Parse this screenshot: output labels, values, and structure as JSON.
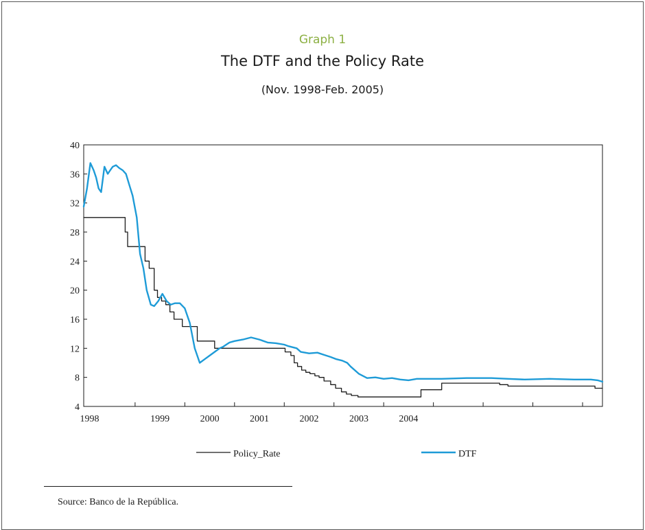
{
  "header": {
    "graph_number": "Graph 1",
    "title": "The DTF and the Policy Rate",
    "subtitle": "(Nov. 1998-Feb. 2005)"
  },
  "footer": {
    "source": "Source: Banco de la República."
  },
  "colors": {
    "policy_rate": "#1a1a1a",
    "dtf": "#1e9bd7",
    "graph_number": "#8cb043"
  },
  "chart_data": {
    "type": "line",
    "title": "The DTF and the Policy Rate",
    "subtitle": "(Nov. 1998-Feb. 2005)",
    "xlabel": "",
    "ylabel": "",
    "xlim": [
      1998.88,
      2005.14
    ],
    "ylim": [
      4,
      40
    ],
    "y_ticks": [
      4,
      8,
      12,
      16,
      20,
      24,
      28,
      32,
      36,
      40
    ],
    "x_tick_labels": [
      "1998",
      "1999",
      "2000",
      "2001",
      "2002",
      "2003",
      "2004"
    ],
    "x_tick_positions": [
      1998.88,
      1999.5,
      2000.1,
      2000.7,
      2001.3,
      2001.9,
      2002.5,
      2003.1,
      2003.7,
      2004.3,
      2004.9
    ],
    "x_label_positions": [
      1998.95,
      1999.8,
      2000.4,
      2001.0,
      2001.6,
      2002.2,
      2002.8
    ],
    "grid": false,
    "legend": "bottom",
    "series": [
      {
        "name": "Policy_Rate",
        "style": "step",
        "color": "#1a1a1a",
        "x": [
          1998.88,
          1999.38,
          1999.41,
          1999.46,
          1999.62,
          1999.67,
          1999.73,
          1999.77,
          1999.82,
          1999.87,
          1999.92,
          1999.97,
          2000.07,
          2000.25,
          2000.46,
          2000.51,
          2000.56,
          2001.31,
          2001.38,
          2001.42,
          2001.46,
          2001.51,
          2001.56,
          2001.61,
          2001.67,
          2001.72,
          2001.78,
          2001.86,
          2001.92,
          2001.99,
          2002.05,
          2002.11,
          2002.19,
          2002.23,
          2002.31,
          2002.95,
          2003.2,
          2003.45,
          2003.9,
          2004.0,
          2005.05,
          2005.14
        ],
        "values": [
          30,
          28,
          26,
          26,
          24,
          23,
          20,
          19,
          18.5,
          18,
          17,
          16,
          15,
          13,
          12,
          12,
          12,
          11.5,
          11,
          10,
          9.5,
          9,
          8.7,
          8.5,
          8.2,
          8,
          7.5,
          7,
          6.5,
          6,
          5.7,
          5.5,
          5.3,
          5.3,
          5.3,
          6.3,
          7.2,
          7.2,
          7.0,
          6.8,
          6.5,
          6.5
        ]
      },
      {
        "name": "DTF",
        "style": "line",
        "color": "#1e9bd7",
        "x": [
          1998.88,
          1998.92,
          1998.96,
          1999.0,
          1999.03,
          1999.06,
          1999.09,
          1999.13,
          1999.17,
          1999.2,
          1999.23,
          1999.27,
          1999.31,
          1999.35,
          1999.39,
          1999.43,
          1999.47,
          1999.52,
          1999.56,
          1999.6,
          1999.64,
          1999.69,
          1999.73,
          1999.78,
          1999.83,
          1999.88,
          1999.93,
          1999.98,
          2000.04,
          2000.1,
          2000.16,
          2000.22,
          2000.28,
          2000.34,
          2000.4,
          2000.46,
          2000.52,
          2000.56,
          2000.6,
          2000.64,
          2000.7,
          2000.8,
          2000.9,
          2001.0,
          2001.1,
          2001.2,
          2001.3,
          2001.35,
          2001.45,
          2001.5,
          2001.6,
          2001.7,
          2001.78,
          2001.86,
          2001.93,
          2002.0,
          2002.06,
          2002.1,
          2002.2,
          2002.3,
          2002.4,
          2002.5,
          2002.6,
          2002.7,
          2002.8,
          2002.9,
          2003.0,
          2003.2,
          2003.5,
          2003.8,
          2004.0,
          2004.2,
          2004.5,
          2004.8,
          2005.0,
          2005.08,
          2005.14
        ],
        "values": [
          31.5,
          34,
          37.5,
          36.5,
          35.5,
          34,
          33.5,
          37,
          36,
          36.5,
          37,
          37.2,
          36.8,
          36.5,
          36,
          34.5,
          33,
          30,
          25,
          23,
          20,
          18,
          17.8,
          18.5,
          19.5,
          18.5,
          18,
          18.2,
          18.2,
          17.5,
          15.5,
          12,
          10,
          10.5,
          11,
          11.5,
          12,
          12.2,
          12.5,
          12.8,
          13,
          13.2,
          13.5,
          13.2,
          12.8,
          12.7,
          12.5,
          12.3,
          12,
          11.5,
          11.3,
          11.4,
          11.1,
          10.8,
          10.5,
          10.3,
          10,
          9.5,
          8.5,
          7.9,
          8,
          7.8,
          7.9,
          7.7,
          7.6,
          7.8,
          7.8,
          7.8,
          7.9,
          7.9,
          7.8,
          7.7,
          7.8,
          7.7,
          7.7,
          7.6,
          7.4
        ]
      }
    ]
  }
}
